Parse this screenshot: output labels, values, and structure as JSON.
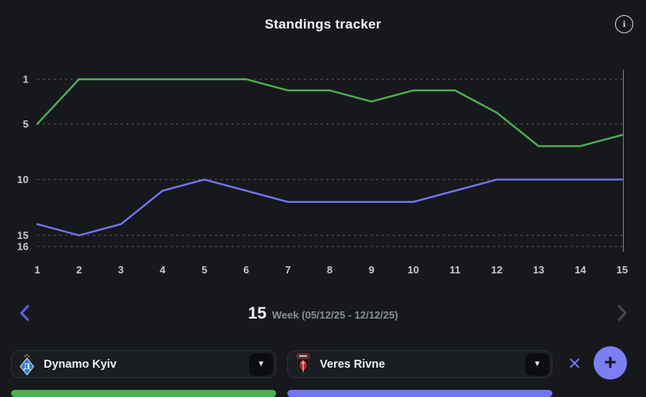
{
  "header": {
    "title": "Standings tracker"
  },
  "icons": {
    "info": "i",
    "caret": "▼",
    "remove": "✕",
    "add": "+"
  },
  "chart_data": {
    "type": "line",
    "title": "Standings tracker",
    "xlabel": "",
    "ylabel": "",
    "x": [
      1,
      2,
      3,
      4,
      5,
      6,
      7,
      8,
      9,
      10,
      11,
      12,
      13,
      14,
      15
    ],
    "y_axis_ticks": [
      1,
      5,
      10,
      15,
      16
    ],
    "ylim": [
      1,
      16
    ],
    "y_inverted": true,
    "grid": "horizontal-dashed",
    "legend_position": "none",
    "current_week_marker_x": 15,
    "series": [
      {
        "name": "Dynamo Kyiv",
        "color": "#4cb050",
        "values": [
          5,
          1,
          1,
          1,
          1,
          1,
          2,
          2,
          3,
          2,
          2,
          4,
          7,
          7,
          6
        ]
      },
      {
        "name": "Veres Rivne",
        "color": "#7175f1",
        "values": [
          14,
          15,
          14,
          11,
          10,
          11,
          12,
          12,
          12,
          12,
          11,
          10,
          10,
          10,
          10
        ]
      }
    ]
  },
  "week_nav": {
    "week_number": "15",
    "week_label": "Week (05/12/25 - 12/12/25)"
  },
  "teams": [
    {
      "name": "Dynamo Kyiv",
      "color": "#4cb050"
    },
    {
      "name": "Veres Rivne",
      "color": "#7175f1"
    }
  ],
  "colors": {
    "background": "#16181c",
    "panel": "#1a1d22",
    "panel_border": "#30343b",
    "accent": "#7175f1",
    "text_primary": "#f3f4f5",
    "text_secondary": "#8b9097"
  }
}
